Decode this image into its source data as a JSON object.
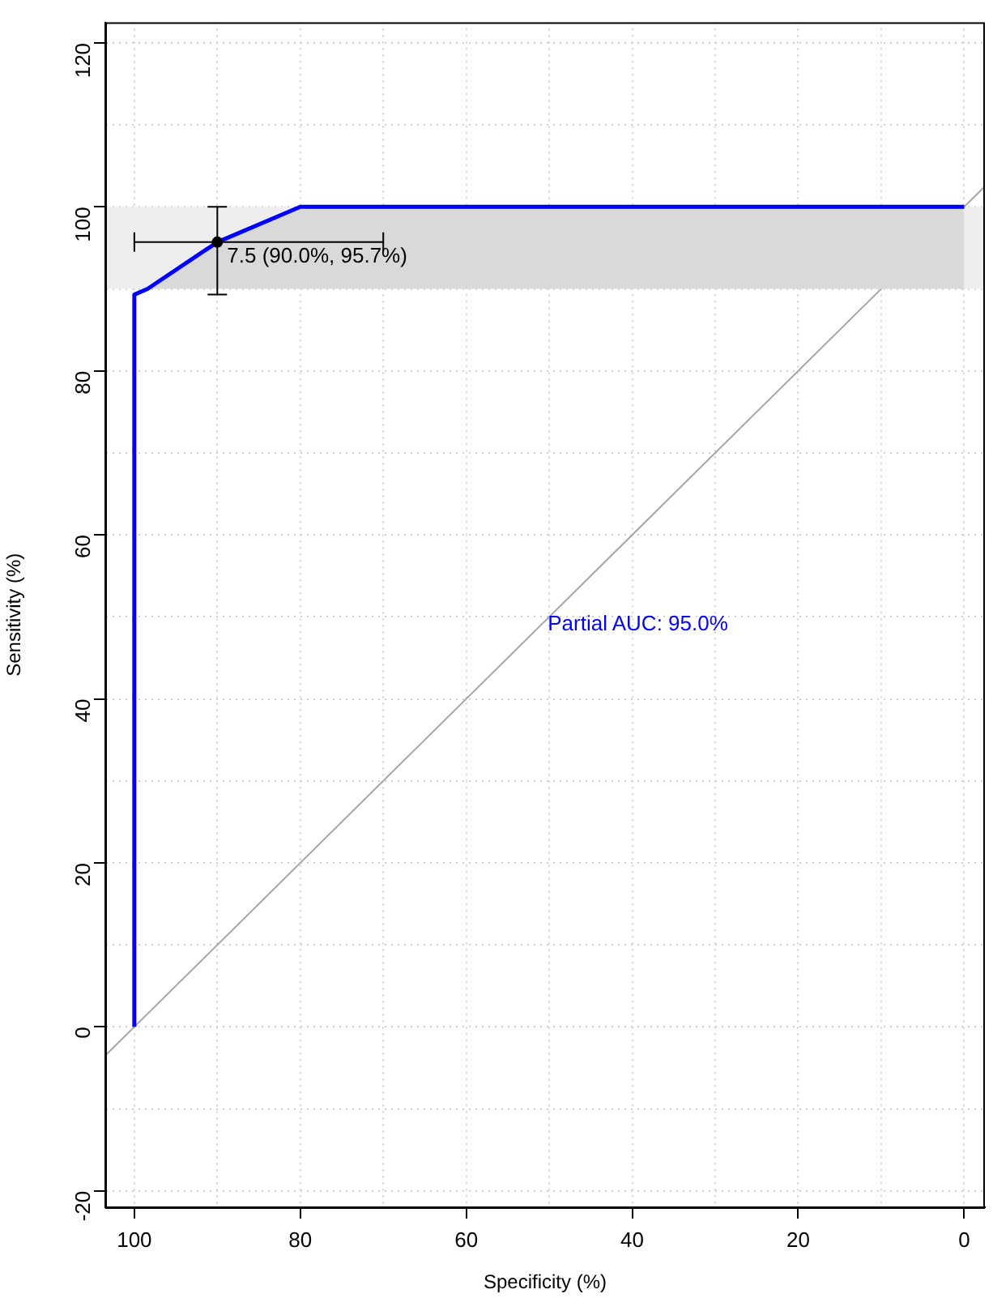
{
  "chart_data": {
    "type": "line",
    "xlabel": "Specificity (%)",
    "ylabel": "Sensitivity (%)",
    "xlim": [
      103.5,
      -2.5
    ],
    "ylim": [
      -22,
      122.5
    ],
    "xticks": [
      {
        "value": 100,
        "label": "100"
      },
      {
        "value": 90,
        "label": null
      },
      {
        "value": 80,
        "label": "80"
      },
      {
        "value": 70,
        "label": null
      },
      {
        "value": 60,
        "label": "60"
      },
      {
        "value": 50,
        "label": null
      },
      {
        "value": 40,
        "label": "40"
      },
      {
        "value": 30,
        "label": null
      },
      {
        "value": 20,
        "label": "20"
      },
      {
        "value": 10,
        "label": null
      },
      {
        "value": 0,
        "label": "0"
      }
    ],
    "yticks": [
      {
        "value": -20,
        "label": "-20"
      },
      {
        "value": -10,
        "label": null
      },
      {
        "value": 0,
        "label": "0"
      },
      {
        "value": 10,
        "label": null
      },
      {
        "value": 20,
        "label": "20"
      },
      {
        "value": 30,
        "label": null
      },
      {
        "value": 40,
        "label": "40"
      },
      {
        "value": 50,
        "label": null
      },
      {
        "value": 60,
        "label": "60"
      },
      {
        "value": 70,
        "label": null
      },
      {
        "value": 80,
        "label": "80"
      },
      {
        "value": 90,
        "label": null
      },
      {
        "value": 100,
        "label": "100"
      },
      {
        "value": 110,
        "label": null
      },
      {
        "value": 120,
        "label": "120"
      }
    ],
    "grid": true,
    "legend": false,
    "line_style": "solid",
    "marker": "none",
    "series": [
      {
        "type": "line",
        "color": "#a6a6a6",
        "x": [
          103.5,
          -2.5
        ],
        "values": [
          -3.5,
          102.5
        ]
      },
      {
        "type": "line",
        "color": "#0000ff",
        "x": [
          100,
          100,
          98.4,
          90,
          80,
          0
        ],
        "values": [
          0,
          89.3,
          90,
          95.7,
          100,
          100
        ],
        "lower": [
          null,
          null,
          90,
          90,
          90,
          90
        ],
        "upper": [
          null,
          null,
          90,
          95.7,
          100,
          100
        ]
      },
      {
        "type": "scatter",
        "color": "#000000",
        "marker": "circle",
        "x": [
          90
        ],
        "values": [
          95.7
        ],
        "errors": [
          [
            89.3,
            100
          ]
        ],
        "xerrors": [
          [
            70,
            100
          ]
        ]
      }
    ],
    "bands": [
      {
        "axis": "y",
        "from": 90,
        "to": 100,
        "color": "#eeeeee"
      }
    ],
    "annotations": [
      {
        "text": "7.5 (90.0%, 95.7%)",
        "x": 90,
        "y": 95.7
      },
      "Partial AUC: 95.0%"
    ]
  }
}
